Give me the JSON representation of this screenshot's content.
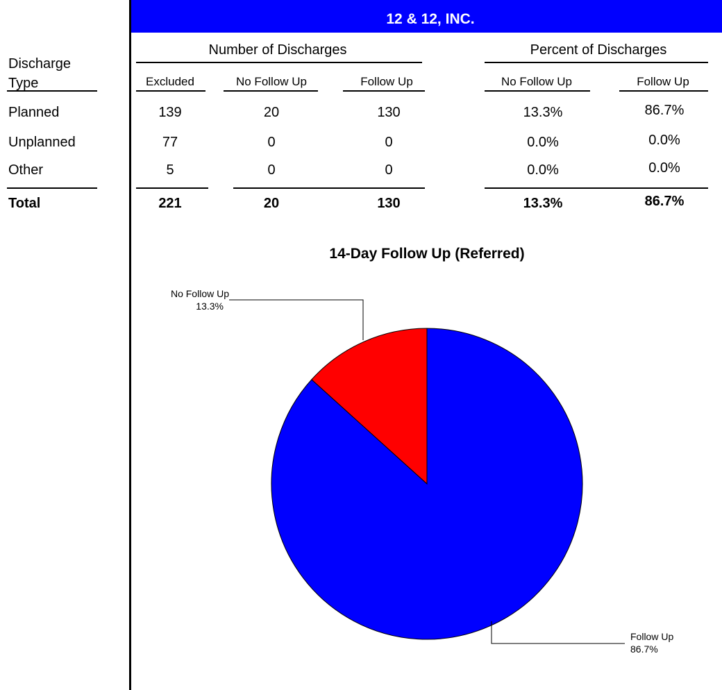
{
  "header": {
    "title": "12 & 12, INC."
  },
  "table": {
    "row_header": "Discharge Type",
    "groups": [
      "Number of Discharges",
      "Percent of Discharges"
    ],
    "columns": [
      "Excluded",
      "No Follow Up",
      "Follow Up",
      "No Follow Up",
      "Follow Up"
    ],
    "rows": [
      {
        "label": "Planned",
        "cells": [
          "139",
          "20",
          "130",
          "13.3%",
          "86.7%"
        ]
      },
      {
        "label": "Unplanned",
        "cells": [
          "77",
          "0",
          "0",
          "0.0%",
          "0.0%"
        ]
      },
      {
        "label": "Other",
        "cells": [
          "5",
          "0",
          "0",
          "0.0%",
          "0.0%"
        ]
      }
    ],
    "total": {
      "label": "Total",
      "cells": [
        "221",
        "20",
        "130",
        "13.3%",
        "86.7%"
      ]
    }
  },
  "chart_data": {
    "type": "pie",
    "title": "14-Day Follow Up (Referred)",
    "categories": [
      "No Follow Up",
      "Follow Up"
    ],
    "values": [
      13.3,
      86.7
    ],
    "value_labels": [
      "13.3%",
      "86.7%"
    ],
    "colors": [
      "#ff0000",
      "#0000ff"
    ]
  }
}
